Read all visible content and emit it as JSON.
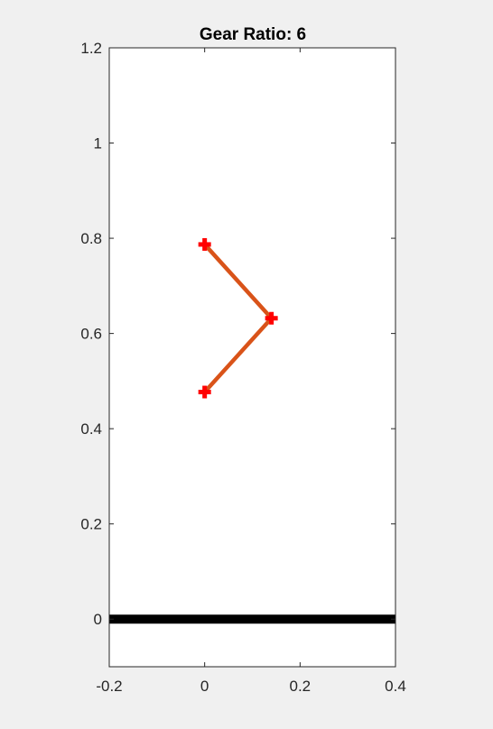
{
  "chart_data": {
    "type": "line",
    "title": "Gear Ratio: 6",
    "xlim": [
      -0.2,
      0.4
    ],
    "ylim": [
      -0.1,
      1.2
    ],
    "xticks": [
      -0.2,
      0,
      0.2,
      0.4
    ],
    "xtick_labels": [
      "-0.2",
      "0",
      "0.2",
      "0.4"
    ],
    "yticks": [
      0,
      0.2,
      0.4,
      0.6,
      0.8,
      1,
      1.2
    ],
    "ytick_labels": [
      "0",
      "0.2",
      "0.4",
      "0.6",
      "0.8",
      "1",
      "1.2"
    ],
    "grid": false,
    "series": [
      {
        "x": [
          0,
          0.14,
          0
        ],
        "y": [
          0.787,
          0.632,
          0.477
        ],
        "color": "#d95319",
        "marker": "+",
        "marker_color": "#ff0000"
      }
    ],
    "ground": {
      "y": 0,
      "color": "#000000"
    },
    "colors": {
      "figure_background": "#f0f0f0",
      "axes_background": "#ffffff",
      "axis": "#262626"
    }
  }
}
